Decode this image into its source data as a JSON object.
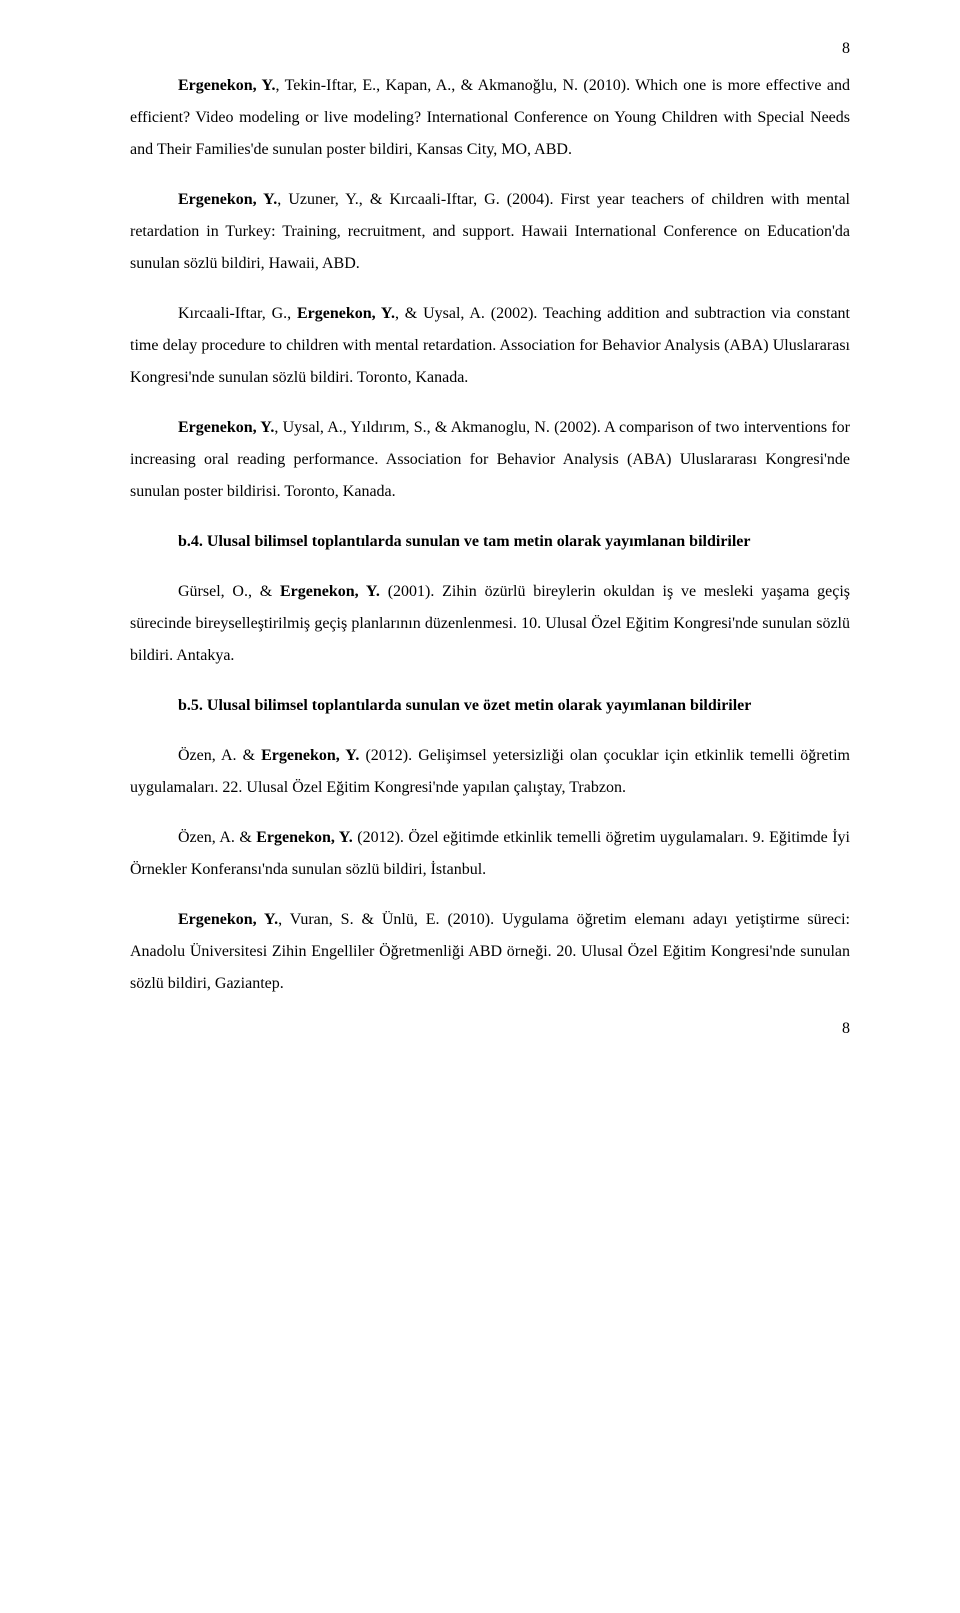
{
  "page": {
    "top_number": "8",
    "bottom_number": "8"
  },
  "paras": {
    "p1_a": "Ergenekon, Y.",
    "p1_b": ", Tekin-Iftar, E., Kapan, A., & Akmanoğlu, N. (2010). Which one is more effective and efficient? Video modeling or live modeling? International Conference on Young Children with Special Needs and Their Families'de sunulan poster bildiri, Kansas City, MO, ABD.",
    "p2_a": "Ergenekon, Y.",
    "p2_b": ", Uzuner, Y., & Kırcaali-Iftar, G. (2004). First year teachers of children with mental retardation in Turkey: Training, recruitment, and support. Hawaii International Conference on Education'da sunulan sözlü bildiri, Hawaii, ABD.",
    "p3_a": "Kırcaali-Iftar, G., ",
    "p3_b": "Ergenekon, Y.",
    "p3_c": ", & Uysal, A. (2002). Teaching addition and subtraction via constant time delay procedure to children with mental retardation. Association for Behavior Analysis (ABA) Uluslararası Kongresi'nde sunulan sözlü bildiri. Toronto, Kanada.",
    "p4_a": "Ergenekon, Y.",
    "p4_b": ", Uysal, A., Yıldırım, S., & Akmanoglu, N. (2002). A comparison of two interventions for increasing oral reading performance. Association for Behavior Analysis (ABA) Uluslararası Kongresi'nde sunulan poster bildirisi. Toronto, Kanada.",
    "h1_a": "b.4. Ulusal bilimsel toplantılarda sunulan ve tam metin olarak yayımlanan bildiriler",
    "p5_a": "Gürsel, O., & ",
    "p5_b": "Ergenekon, Y.",
    "p5_c": " (2001). Zihin özürlü bireylerin okuldan iş ve mesleki yaşama geçiş sürecinde bireyselleştirilmiş geçiş planlarının düzenlenmesi. 10. Ulusal Özel Eğitim Kongresi'nde sunulan sözlü bildiri. Antakya.",
    "h2_a": "b.5. Ulusal bilimsel toplantılarda sunulan ve özet metin olarak yayımlanan bildiriler",
    "p6_a": "Özen, A. & ",
    "p6_b": "Ergenekon, Y.",
    "p6_c": " (2012). Gelişimsel yetersizliği olan çocuklar için etkinlik temelli öğretim uygulamaları. 22. Ulusal Özel Eğitim Kongresi'nde yapılan çalıştay, Trabzon.",
    "p7_a": "Özen, A. & ",
    "p7_b": "Ergenekon, Y.",
    "p7_c": " (2012). Özel eğitimde etkinlik temelli öğretim uygulamaları. 9. Eğitimde İyi Örnekler Konferansı'nda sunulan sözlü bildiri, İstanbul.",
    "p8_a": "Ergenekon, Y.",
    "p8_b": ", Vuran, S. & Ünlü, E. (2010). Uygulama öğretim elemanı adayı yetiştirme süreci: Anadolu Üniversitesi Zihin Engelliler Öğretmenliği ABD örneği. 20. Ulusal Özel Eğitim Kongresi'nde sunulan sözlü bildiri, Gaziantep."
  }
}
